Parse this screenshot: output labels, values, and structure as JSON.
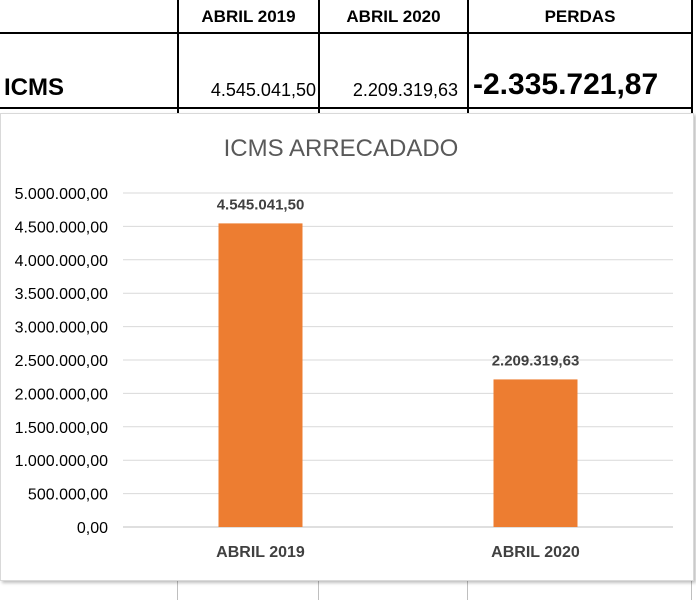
{
  "table": {
    "headers": [
      "",
      "ABRIL 2019",
      "ABRIL 2020",
      "PERDAS"
    ],
    "row": {
      "label": "ICMS",
      "values": [
        "4.545.041,50",
        "2.209.319,63",
        "-2.335.721,87"
      ]
    }
  },
  "colors": {
    "bar": "#ED7D31",
    "grid": "#D9D9D9",
    "title": "#595959",
    "axis_text": "#000000"
  },
  "chart_data": {
    "type": "bar",
    "title": "ICMS ARRECADADO",
    "categories": [
      "ABRIL 2019",
      "ABRIL 2020"
    ],
    "values": [
      4545041.5,
      2209319.63
    ],
    "data_labels": [
      "4.545.041,50",
      "2.209.319,63"
    ],
    "ylim": [
      0,
      5000000
    ],
    "yticks": [
      0,
      500000,
      1000000,
      1500000,
      2000000,
      2500000,
      3000000,
      3500000,
      4000000,
      4500000,
      5000000
    ],
    "ytick_labels": [
      "0,00",
      "500.000,00",
      "1.000.000,00",
      "1.500.000,00",
      "2.000.000,00",
      "2.500.000,00",
      "3.000.000,00",
      "3.500.000,00",
      "4.000.000,00",
      "4.500.000,00",
      "5.000.000,00"
    ],
    "xlabel": "",
    "ylabel": "",
    "grid": true,
    "legend": "none"
  }
}
